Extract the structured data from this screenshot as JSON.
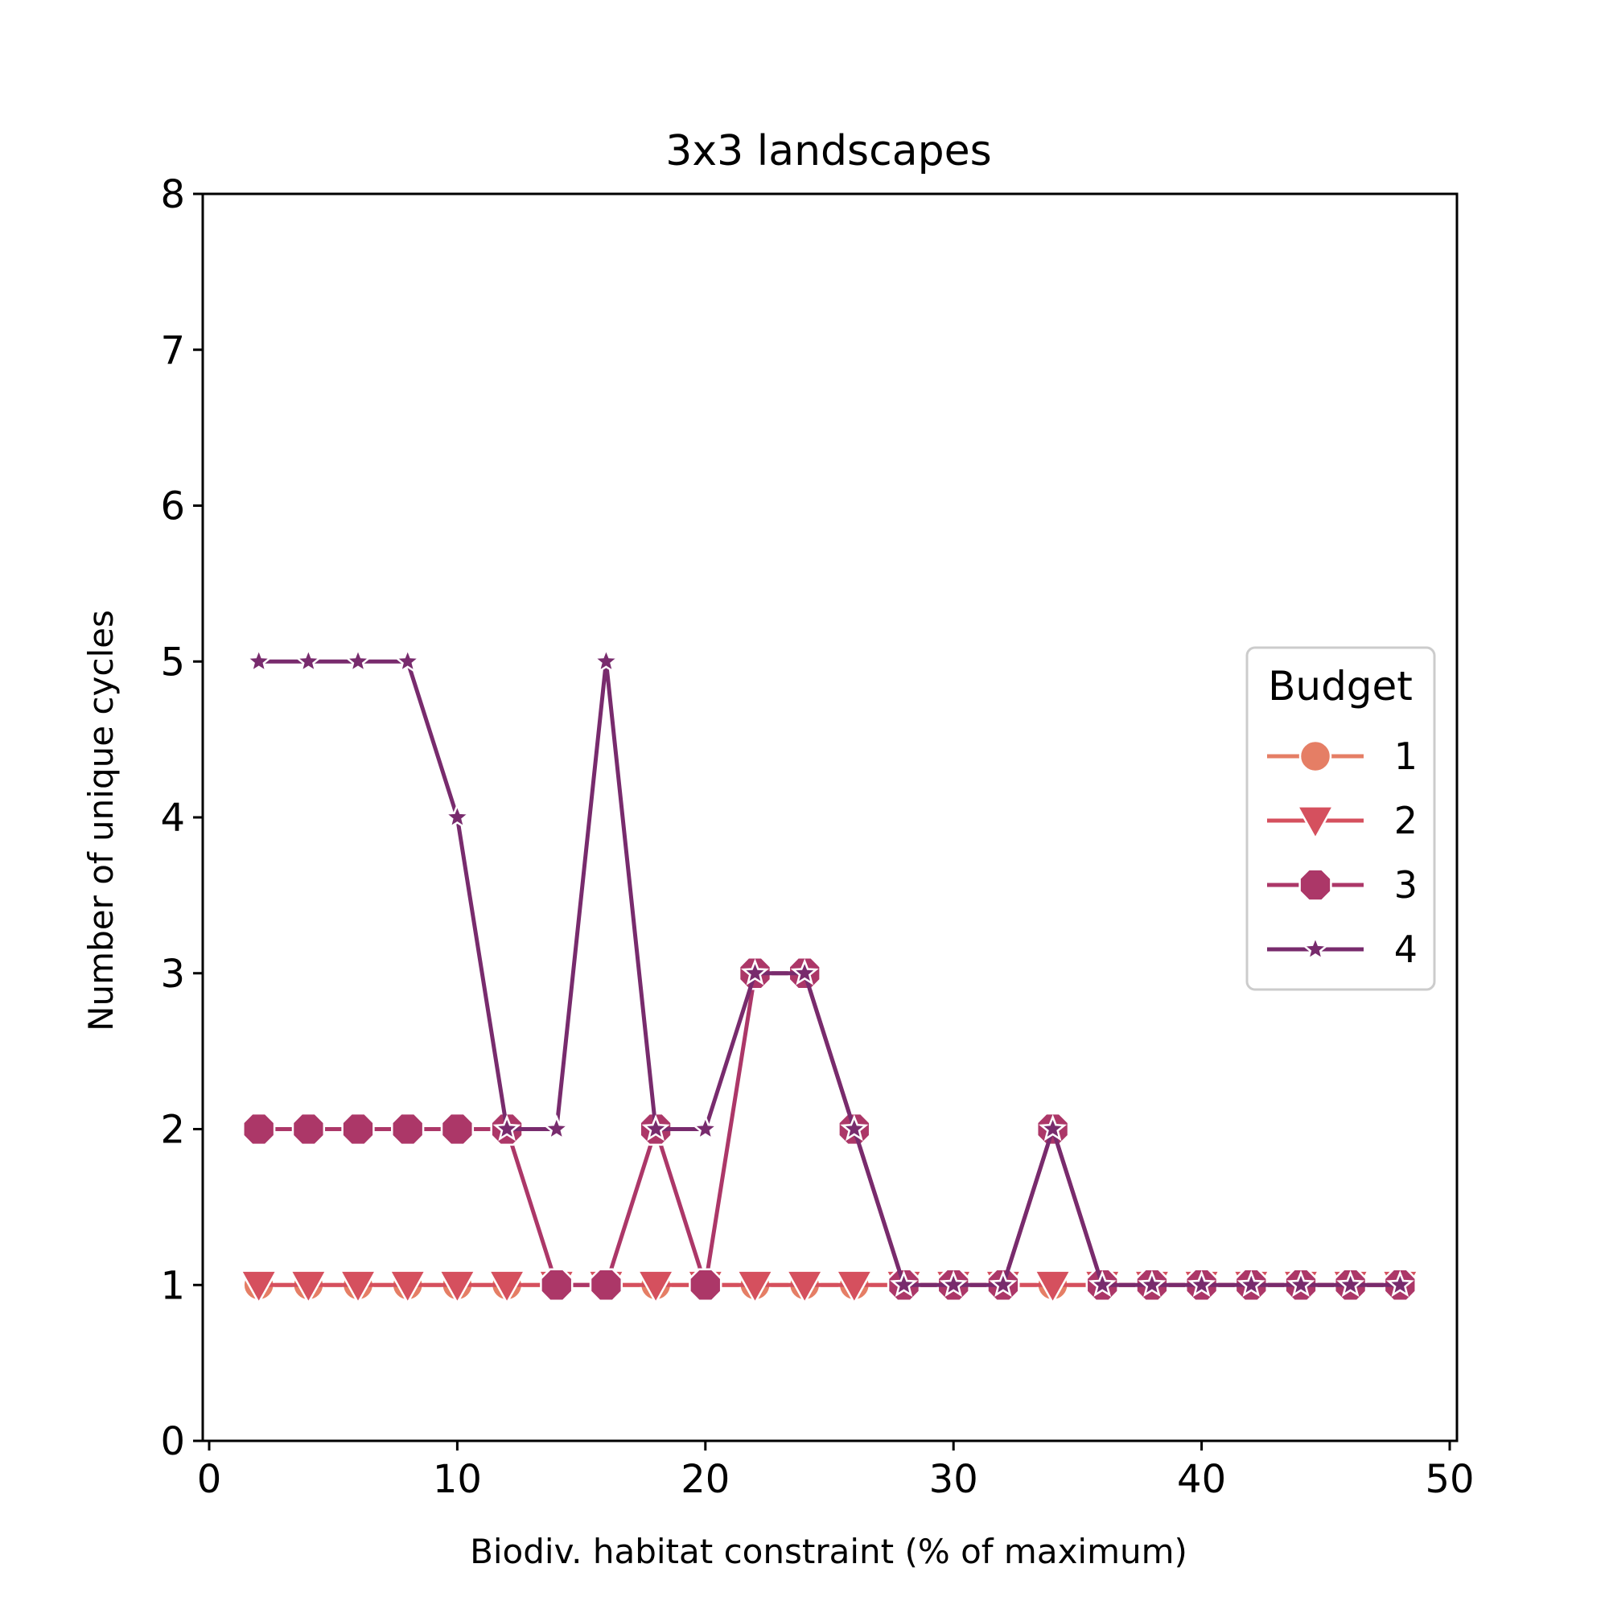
{
  "chart_data": {
    "type": "line",
    "title": "3x3 landscapes",
    "xlabel": "Biodiv. habitat constraint (% of maximum)",
    "ylabel": "Number of unique cycles",
    "xlim": [
      0,
      50
    ],
    "ylim": [
      0,
      8
    ],
    "xticks": [
      0,
      10,
      20,
      30,
      40,
      50
    ],
    "yticks": [
      0,
      1,
      2,
      3,
      4,
      5,
      6,
      7,
      8
    ],
    "grid": false,
    "legend": {
      "title": "Budget",
      "placement": "center-right"
    },
    "x": [
      2,
      4,
      6,
      8,
      10,
      12,
      14,
      16,
      18,
      20,
      22,
      24,
      26,
      28,
      30,
      32,
      34,
      36,
      38,
      40,
      42,
      44,
      46,
      48
    ],
    "series": [
      {
        "name": "1",
        "marker": "circle",
        "color": "#e57e65",
        "values": [
          1,
          1,
          1,
          1,
          1,
          1,
          1,
          1,
          1,
          1,
          1,
          1,
          1,
          1,
          1,
          1,
          1,
          1,
          1,
          1,
          1,
          1,
          1,
          1
        ]
      },
      {
        "name": "2",
        "marker": "triangle-down",
        "color": "#d5505e",
        "values": [
          1,
          1,
          1,
          1,
          1,
          1,
          1,
          1,
          1,
          1,
          1,
          1,
          1,
          1,
          1,
          1,
          1,
          1,
          1,
          1,
          1,
          1,
          1,
          1
        ]
      },
      {
        "name": "3",
        "marker": "octagon",
        "color": "#ac3768",
        "values": [
          2,
          2,
          2,
          2,
          2,
          2,
          1,
          1,
          2,
          1,
          3,
          3,
          2,
          1,
          1,
          1,
          2,
          1,
          1,
          1,
          1,
          1,
          1,
          1
        ]
      },
      {
        "name": "4",
        "marker": "star",
        "color": "#782b6d",
        "values": [
          5,
          5,
          5,
          5,
          4,
          2,
          2,
          5,
          2,
          2,
          3,
          3,
          2,
          1,
          1,
          1,
          2,
          1,
          1,
          1,
          1,
          1,
          1,
          1
        ]
      }
    ]
  }
}
